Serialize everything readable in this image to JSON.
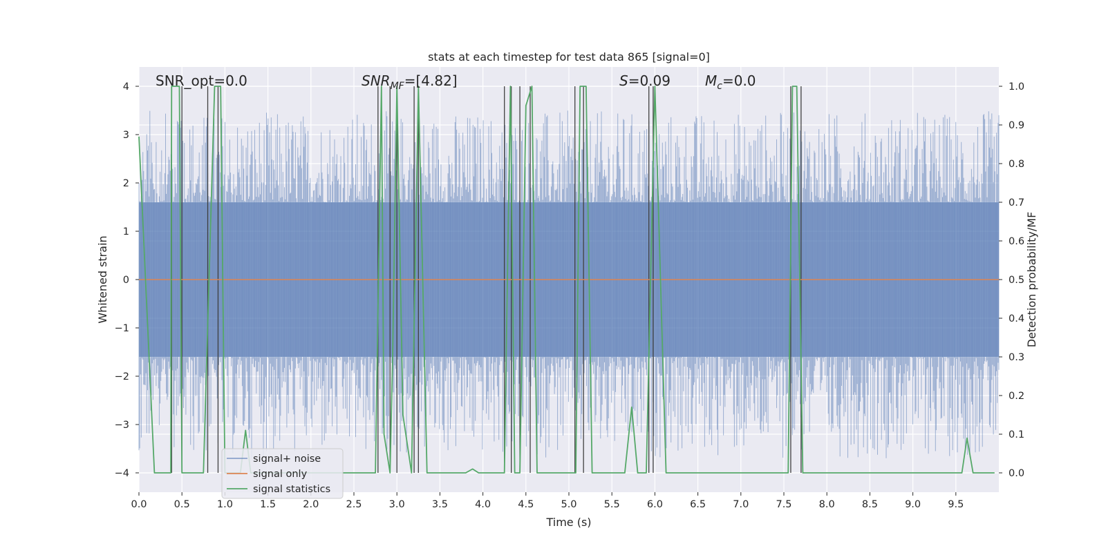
{
  "chart_data": {
    "type": "line",
    "title": "stats at each timestep for test data 865 [signal=0]",
    "xlabel": "Time (s)",
    "ylabel": "Whitened strain",
    "y2label": "Detection probability/MF",
    "xlim": [
      0.0,
      10.0
    ],
    "ylim": [
      -4.4,
      4.4
    ],
    "y2lim": [
      -0.05,
      1.05
    ],
    "x_ticks": [
      "0.0",
      "0.5",
      "1.0",
      "1.5",
      "2.0",
      "2.5",
      "3.0",
      "3.5",
      "4.0",
      "4.5",
      "5.0",
      "5.5",
      "6.0",
      "6.5",
      "7.0",
      "7.5",
      "8.0",
      "8.5",
      "9.0",
      "9.5"
    ],
    "y_ticks": [
      "4",
      "3",
      "2",
      "1",
      "0",
      "−1",
      "−2",
      "−3",
      "−4"
    ],
    "y2_ticks": [
      "1.0",
      "0.9",
      "0.8",
      "0.7",
      "0.6",
      "0.5",
      "0.4",
      "0.3",
      "0.2",
      "0.1",
      "0.0"
    ],
    "grid": true,
    "legend_position": "lower left",
    "annotations": {
      "snr_opt": "SNR_opt=0.0",
      "snr_mf_base": "SNR",
      "snr_mf_sub": "MF",
      "snr_mf_value": "=[4.82]",
      "s_var": "S",
      "s_value": "=0.09",
      "mc_var": "M",
      "mc_sub": "c",
      "mc_value": "=0.0"
    },
    "series": [
      {
        "name": "signal+ noise",
        "axis": "left",
        "color": "#4c72b0",
        "style": "noise_band",
        "typical_range": [
          -1.6,
          1.6
        ],
        "peak_range": [
          -3.7,
          3.5
        ]
      },
      {
        "name": "signal only",
        "axis": "left",
        "color": "#dd8452",
        "x": [
          0.0,
          10.0
        ],
        "y": [
          0.0,
          0.0
        ]
      },
      {
        "name": "signal statistics",
        "axis": "right",
        "color": "#55a868",
        "x": [
          0.0,
          0.18,
          0.37,
          0.38,
          0.47,
          0.5,
          0.52,
          0.75,
          0.88,
          0.95,
          1.0,
          1.18,
          1.24,
          1.3,
          2.75,
          2.82,
          2.85,
          2.92,
          2.95,
          3.0,
          3.07,
          3.17,
          3.25,
          3.35,
          3.8,
          3.88,
          3.95,
          4.25,
          4.32,
          4.37,
          4.43,
          4.5,
          4.57,
          4.63,
          5.0,
          5.08,
          5.13,
          5.2,
          5.27,
          5.65,
          5.73,
          5.8,
          5.9,
          6.0,
          6.13,
          7.55,
          7.6,
          7.65,
          7.72,
          9.57,
          9.63,
          9.7,
          9.95
        ],
        "y": [
          0.87,
          0.0,
          0.0,
          1.0,
          1.0,
          0.0,
          0.0,
          0.0,
          1.0,
          1.0,
          0.0,
          0.0,
          0.11,
          0.0,
          0.0,
          1.0,
          0.1,
          0.0,
          0.3,
          1.0,
          0.15,
          0.0,
          1.0,
          0.0,
          0.0,
          0.01,
          0.0,
          0.0,
          1.0,
          0.0,
          0.0,
          0.95,
          1.0,
          0.0,
          0.0,
          0.0,
          1.0,
          1.0,
          0.0,
          0.0,
          0.17,
          0.0,
          0.0,
          1.0,
          0.0,
          0.0,
          1.0,
          1.0,
          0.0,
          0.0,
          0.09,
          0.0,
          0.0
        ]
      },
      {
        "name": "detection markers",
        "axis": "right",
        "color": "#404040",
        "style": "vlines",
        "x": [
          0.38,
          0.5,
          0.8,
          0.92,
          2.78,
          2.92,
          3.0,
          3.2,
          3.25,
          4.25,
          4.33,
          4.43,
          4.55,
          5.07,
          5.17,
          5.93,
          5.98,
          7.58,
          7.7
        ]
      }
    ]
  }
}
